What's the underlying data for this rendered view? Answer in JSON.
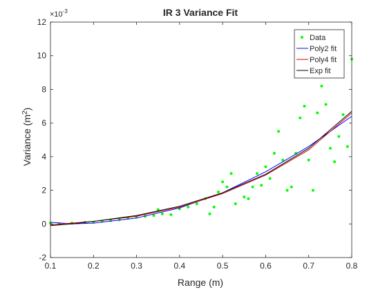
{
  "chart_data": {
    "type": "scatter",
    "title": "IR 3 Variance Fit",
    "xlabel": "Range (m)",
    "ylabel_main": "Variance (m",
    "ylabel_sup": "2",
    "ylabel_close": ")",
    "exponent_prefix": "×10",
    "exponent_sup": "-3",
    "xlim": [
      0.1,
      0.8
    ],
    "ylim": [
      -2,
      12
    ],
    "x_ticks": [
      0.1,
      0.2,
      0.3,
      0.4,
      0.5,
      0.6,
      0.7,
      0.8
    ],
    "x_tick_labels": [
      "0.1",
      "0.2",
      "0.3",
      "0.4",
      "0.5",
      "0.6",
      "0.7",
      "0.8"
    ],
    "y_ticks": [
      -2,
      0,
      2,
      4,
      6,
      8,
      10,
      12
    ],
    "y_tick_labels": [
      "-2",
      "0",
      "2",
      "4",
      "6",
      "8",
      "10",
      "12"
    ],
    "grid": false,
    "legend_position": "top-right",
    "series": [
      {
        "name": "Data",
        "kind": "points",
        "color": "#00ff00",
        "points": [
          [
            0.1,
            0.05
          ],
          [
            0.12,
            0.0
          ],
          [
            0.15,
            0.05
          ],
          [
            0.18,
            0.1
          ],
          [
            0.2,
            0.1
          ],
          [
            0.22,
            0.15
          ],
          [
            0.24,
            0.2
          ],
          [
            0.26,
            0.25
          ],
          [
            0.28,
            0.35
          ],
          [
            0.3,
            0.4
          ],
          [
            0.32,
            0.45
          ],
          [
            0.34,
            0.5
          ],
          [
            0.35,
            0.85
          ],
          [
            0.36,
            0.6
          ],
          [
            0.38,
            0.55
          ],
          [
            0.4,
            0.9
          ],
          [
            0.42,
            1.0
          ],
          [
            0.44,
            1.2
          ],
          [
            0.46,
            1.5
          ],
          [
            0.47,
            0.6
          ],
          [
            0.48,
            1.0
          ],
          [
            0.49,
            1.9
          ],
          [
            0.5,
            2.5
          ],
          [
            0.51,
            2.2
          ],
          [
            0.52,
            3.0
          ],
          [
            0.53,
            1.2
          ],
          [
            0.55,
            1.6
          ],
          [
            0.56,
            1.5
          ],
          [
            0.57,
            2.2
          ],
          [
            0.58,
            3.0
          ],
          [
            0.59,
            2.3
          ],
          [
            0.6,
            3.4
          ],
          [
            0.61,
            2.7
          ],
          [
            0.62,
            4.2
          ],
          [
            0.63,
            5.5
          ],
          [
            0.64,
            3.8
          ],
          [
            0.65,
            2.0
          ],
          [
            0.66,
            2.2
          ],
          [
            0.67,
            4.2
          ],
          [
            0.68,
            6.3
          ],
          [
            0.69,
            7.0
          ],
          [
            0.7,
            3.8
          ],
          [
            0.71,
            2.0
          ],
          [
            0.72,
            6.6
          ],
          [
            0.73,
            8.2
          ],
          [
            0.74,
            7.1
          ],
          [
            0.75,
            4.5
          ],
          [
            0.76,
            3.7
          ],
          [
            0.77,
            5.2
          ],
          [
            0.78,
            6.5
          ],
          [
            0.79,
            4.6
          ],
          [
            0.8,
            9.8
          ]
        ]
      },
      {
        "name": "Poly2 fit",
        "kind": "line",
        "color": "#0000ff",
        "points": [
          [
            0.1,
            0.1
          ],
          [
            0.15,
            0.0
          ],
          [
            0.2,
            0.05
          ],
          [
            0.3,
            0.35
          ],
          [
            0.4,
            0.95
          ],
          [
            0.5,
            1.85
          ],
          [
            0.6,
            3.1
          ],
          [
            0.7,
            4.6
          ],
          [
            0.8,
            6.4
          ]
        ]
      },
      {
        "name": "Poly4 fit",
        "kind": "line",
        "color": "#cc0000",
        "points": [
          [
            0.1,
            -0.05
          ],
          [
            0.15,
            0.05
          ],
          [
            0.2,
            0.15
          ],
          [
            0.3,
            0.45
          ],
          [
            0.4,
            1.0
          ],
          [
            0.5,
            1.8
          ],
          [
            0.6,
            2.9
          ],
          [
            0.7,
            4.4
          ],
          [
            0.8,
            6.6
          ]
        ]
      },
      {
        "name": "Exp fit",
        "kind": "line",
        "color": "#000000",
        "points": [
          [
            0.1,
            -0.1
          ],
          [
            0.15,
            0.0
          ],
          [
            0.2,
            0.15
          ],
          [
            0.3,
            0.5
          ],
          [
            0.4,
            1.05
          ],
          [
            0.5,
            1.85
          ],
          [
            0.6,
            2.95
          ],
          [
            0.7,
            4.5
          ],
          [
            0.8,
            6.7
          ]
        ]
      }
    ]
  }
}
